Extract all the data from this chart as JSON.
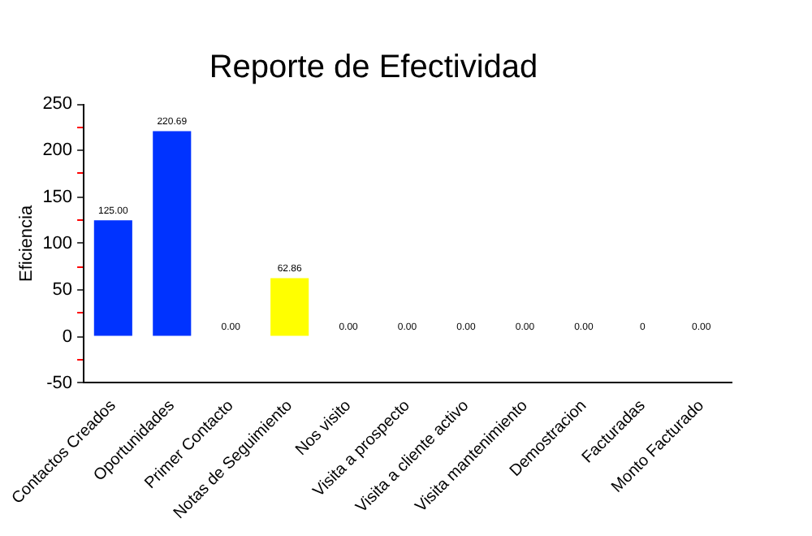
{
  "chart_data": {
    "type": "bar",
    "title": "Reporte de Efectividad",
    "ylabel": "Eficiencia",
    "categories": [
      "Contactos Creados",
      "Oportunidades",
      "Primer Contacto",
      "Notas de Seguimiento",
      "Nos visito",
      "Visita a prospecto",
      "Visita a cliente activo",
      "Visita mantenimiento",
      "Demostracion",
      "Facturadas",
      "Monto Facturado"
    ],
    "values": [
      125,
      220.69,
      0,
      62.86,
      0,
      0,
      0,
      0,
      0,
      0,
      0
    ],
    "value_labels": [
      "125.00",
      "220.69",
      "0.00",
      "62.86",
      "0.00",
      "0.00",
      "0.00",
      "0.00",
      "0.00",
      "0",
      "0.00"
    ],
    "colors": [
      "#0033ff",
      "#0033ff",
      "#ff6666",
      "#ffff00",
      "#ff6666",
      "#ff6666",
      "#ff6666",
      "#ff6666",
      "#ff6666",
      "#ff6666",
      "#ff6666"
    ],
    "ylim": [
      -50,
      250
    ],
    "yticks": [
      -50,
      {
        "value": -25,
        "label": null
      },
      0,
      {
        "value": 25,
        "label": null
      },
      50,
      {
        "value": 75,
        "label": null
      },
      100,
      {
        "value": 125,
        "label": null
      },
      150,
      {
        "value": 175,
        "label": null
      },
      200,
      {
        "value": 225,
        "label": null
      },
      250
    ],
    "grid": false
  }
}
